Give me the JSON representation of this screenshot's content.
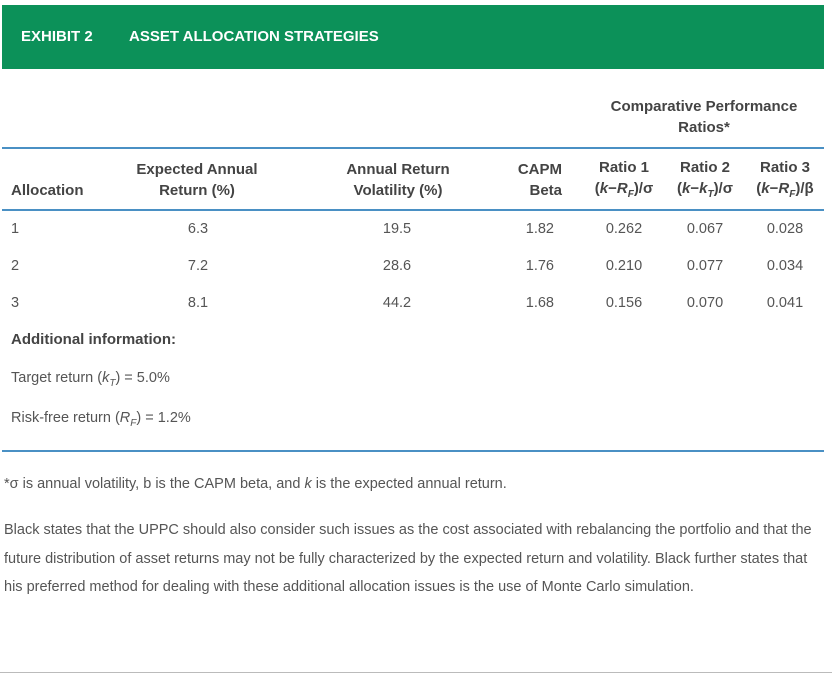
{
  "header": {
    "exhibit_label": "EXHIBIT 2",
    "title": "ASSET ALLOCATION STRATEGIES"
  },
  "table": {
    "group_header": "Comparative Performance Ratios*",
    "columns": {
      "allocation": "Allocation",
      "expected_return": "Expected Annual Return (%)",
      "volatility": "Annual Return Volatility (%)",
      "beta": "CAPM Beta",
      "ratio1_title": "Ratio 1",
      "ratio2_title": "Ratio 2",
      "ratio3_title": "Ratio 3"
    },
    "rows": [
      {
        "allocation": "1",
        "expected_return": "6.3",
        "volatility": "19.5",
        "beta": "1.82",
        "ratio1": "0.262",
        "ratio2": "0.067",
        "ratio3": "0.028"
      },
      {
        "allocation": "2",
        "expected_return": "7.2",
        "volatility": "28.6",
        "beta": "1.76",
        "ratio1": "0.210",
        "ratio2": "0.077",
        "ratio3": "0.034"
      },
      {
        "allocation": "3",
        "expected_return": "8.1",
        "volatility": "44.2",
        "beta": "1.68",
        "ratio1": "0.156",
        "ratio2": "0.070",
        "ratio3": "0.041"
      }
    ]
  },
  "additional": {
    "title": "Additional information:",
    "target_prefix": "Target return (",
    "target_value": ") = 5.0%",
    "riskfree_prefix": "Risk-free return (",
    "riskfree_value": ") = 1.2%"
  },
  "footnote": {
    "prefix": "*σ is annual volatility, b is the CAPM beta, and ",
    "suffix": " is the expected annual return."
  },
  "paragraph": "Black states that the UPPC should also consider such issues as the cost associated with rebalancing the portfolio and that the future distribution of asset returns may not be fully characterized by the expected return and volatility. Black further states that his preferred method for dealing with these additional allocation issues is the use of Monte Carlo simulation."
}
